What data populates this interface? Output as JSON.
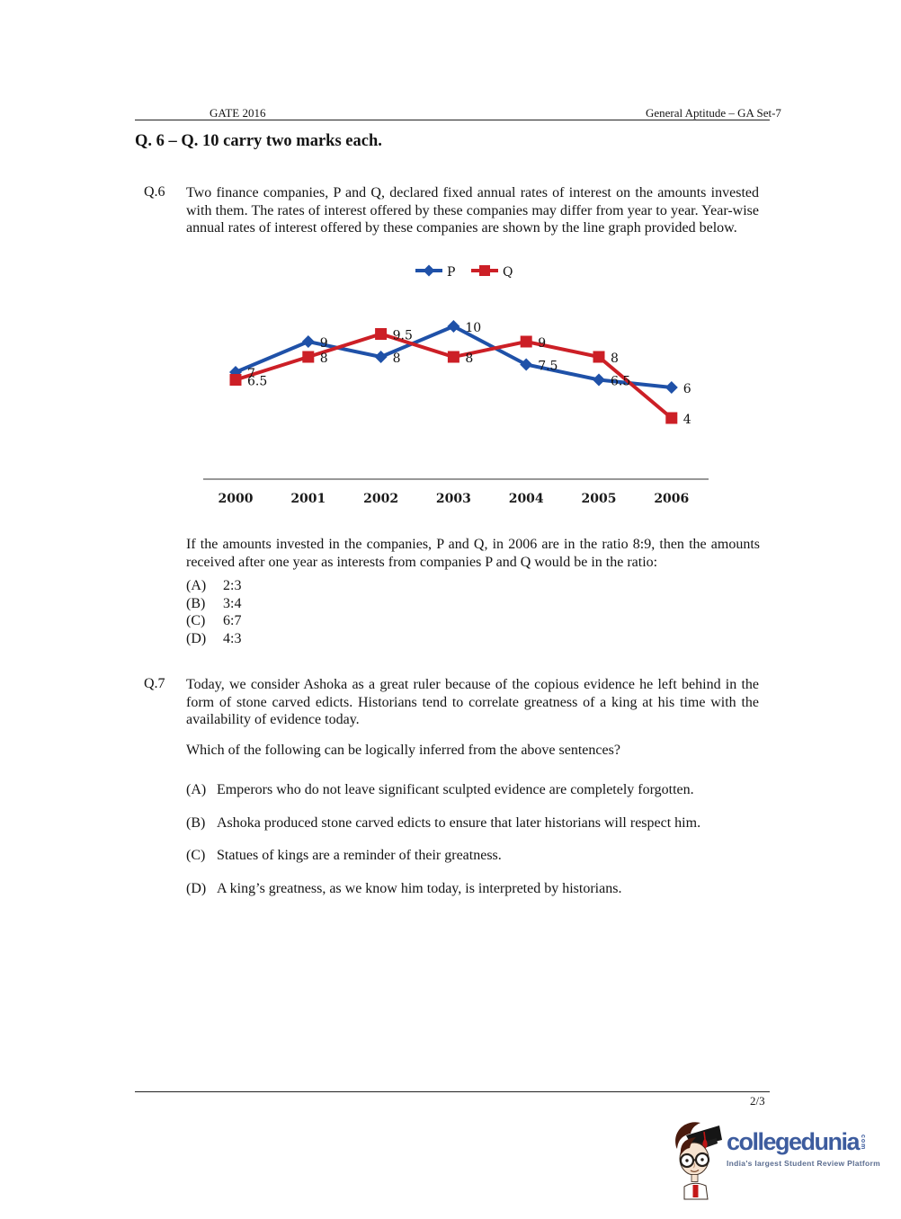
{
  "header": {
    "left": "GATE 2016",
    "right": "General Aptitude – GA Set-7"
  },
  "section_heading": "Q. 6 – Q. 10 carry two marks each.",
  "q6": {
    "number": "Q.6",
    "intro": "Two finance companies, P and Q, declared fixed annual rates of interest on the amounts invested with them. The rates of interest offered by these companies may differ from year to year. Year-wise annual rates of interest offered by these companies are shown by the line graph provided below.",
    "followup": "If the amounts invested in the companies, P and Q, in 2006 are in the ratio 8:9, then the amounts received after one year as interests from companies P and Q would be in the ratio:",
    "options": [
      {
        "label": "(A)",
        "text": "2:3"
      },
      {
        "label": "(B)",
        "text": "3:4"
      },
      {
        "label": "(C)",
        "text": "6:7"
      },
      {
        "label": "(D)",
        "text": "4:3"
      }
    ]
  },
  "chart_data": {
    "type": "line",
    "categories": [
      "2000",
      "2001",
      "2002",
      "2003",
      "2004",
      "2005",
      "2006"
    ],
    "series": [
      {
        "name": "P",
        "marker": "diamond",
        "color": "#1F51A8",
        "values": [
          7,
          9,
          8,
          10,
          7.5,
          6.5,
          6
        ]
      },
      {
        "name": "Q",
        "marker": "square",
        "color": "#CC1F26",
        "values": [
          6.5,
          8,
          9.5,
          8,
          9,
          8,
          4
        ]
      }
    ],
    "title": "",
    "xlabel": "",
    "ylabel": "",
    "legend_position": "top",
    "grid": false,
    "y_axis_shown": false,
    "data_labels": true,
    "value_range_shown": [
      4,
      10
    ]
  },
  "q7": {
    "number": "Q.7",
    "intro": "Today, we consider Ashoka as a great ruler because of the copious evidence he left behind in the form of stone carved edicts. Historians tend to correlate greatness of a king at his time with the availability of evidence today.",
    "question": "Which of the following can be logically inferred from the above sentences?",
    "options": [
      {
        "label": "(A)",
        "text": "Emperors who do not leave significant sculpted evidence are completely forgotten."
      },
      {
        "label": "(B)",
        "text": "Ashoka produced stone carved edicts to ensure that later historians will respect him."
      },
      {
        "label": "(C)",
        "text": "Statues of kings are a reminder of their greatness."
      },
      {
        "label": "(D)",
        "text": "A king’s greatness, as we know him today, is interpreted by historians."
      }
    ]
  },
  "footer": {
    "page": "2/3",
    "logo": {
      "wordmark": "collegedunia",
      "tld": "com",
      "tagline": "India's largest Student Review Platform",
      "wordmark_color": "#3D5C9E",
      "tagline_color": "#5B6D90"
    }
  }
}
